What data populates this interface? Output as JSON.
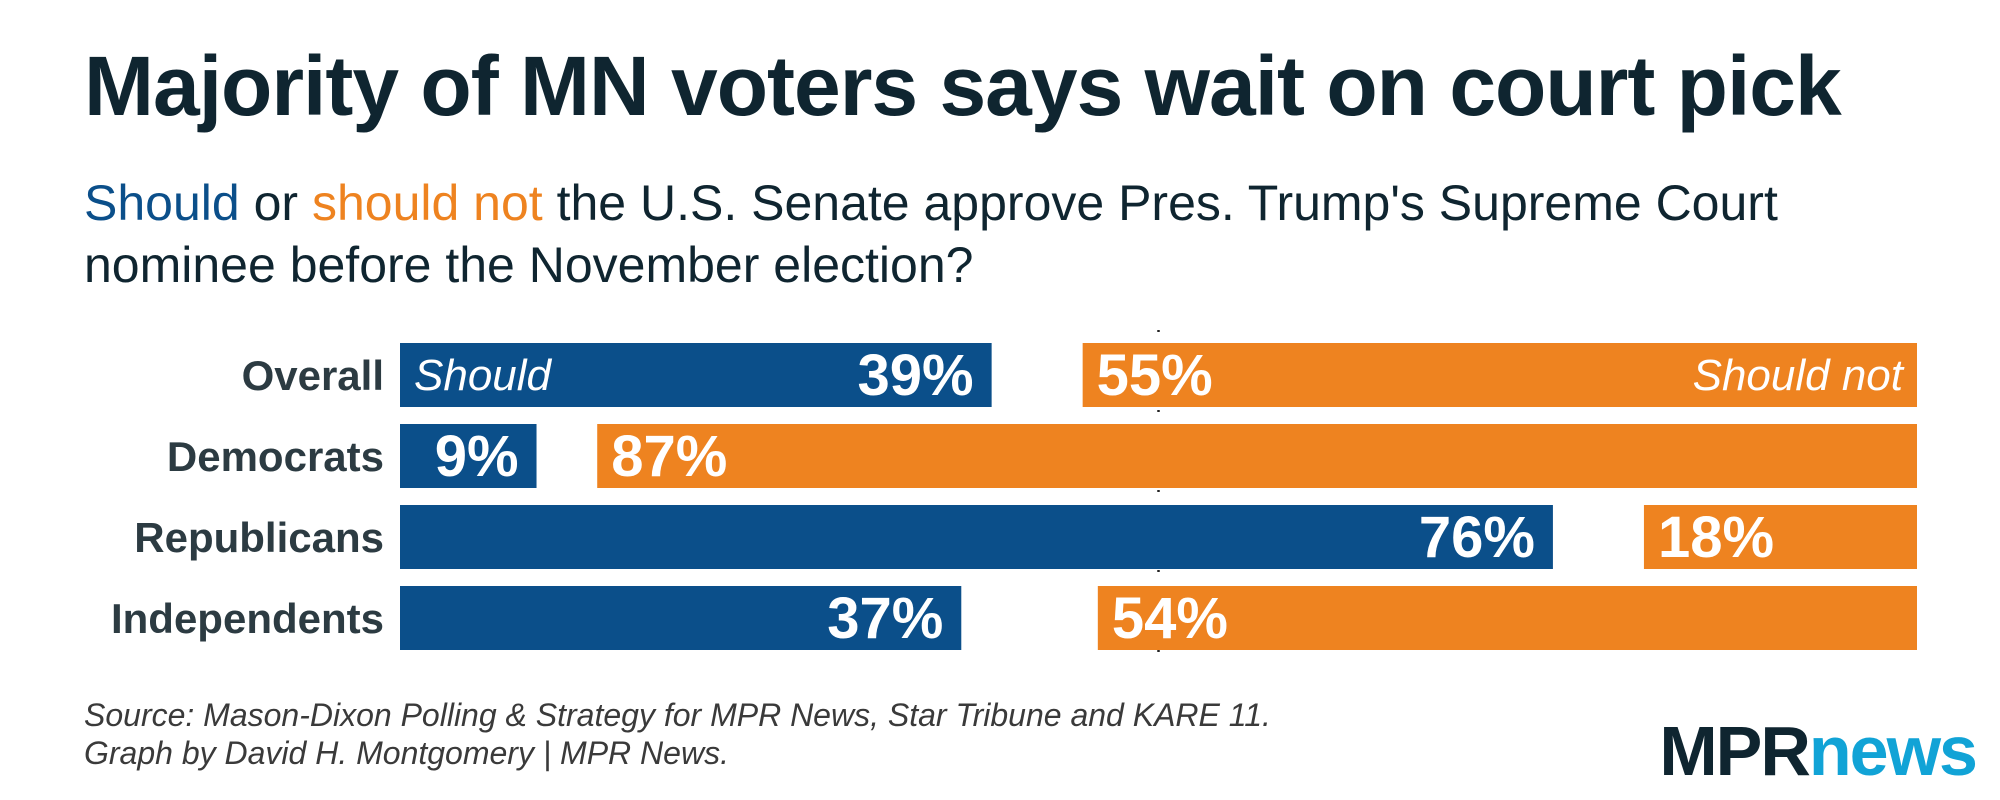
{
  "title": "Majority of MN voters says wait on court pick",
  "subtitle": {
    "should": "Should",
    "or": " or ",
    "should_not": "should not",
    "rest": " the U.S. Senate approve Pres. Trump's Supreme Court nominee before the November election?"
  },
  "colors": {
    "should": "#0b4f8a",
    "should_not": "#ee8320",
    "text": "#0f2530",
    "logo_news": "#11a3d6"
  },
  "chart_data": {
    "type": "bar",
    "orientation": "horizontal",
    "layout": "diverging",
    "categories": [
      "Overall",
      "Democrats",
      "Republicans",
      "Independents"
    ],
    "series": [
      {
        "name": "Should",
        "values": [
          39,
          9,
          76,
          37
        ]
      },
      {
        "name": "Should not",
        "values": [
          55,
          87,
          18,
          54
        ]
      }
    ],
    "data_labels": {
      "should": [
        "39%",
        "9%",
        "76%",
        "37%"
      ],
      "should_not": [
        "55%",
        "87%",
        "18%",
        "54%"
      ]
    },
    "xlim": [
      0,
      100
    ],
    "midline": 50,
    "grid": false,
    "legend": "inline on first row"
  },
  "source": {
    "line1": "Source: Mason-Dixon Polling & Strategy for MPR News, Star Tribune and KARE 11.",
    "line2": "Graph by David H. Montgomery | MPR News."
  },
  "logo": {
    "part1": "MPR",
    "part2": "news"
  }
}
